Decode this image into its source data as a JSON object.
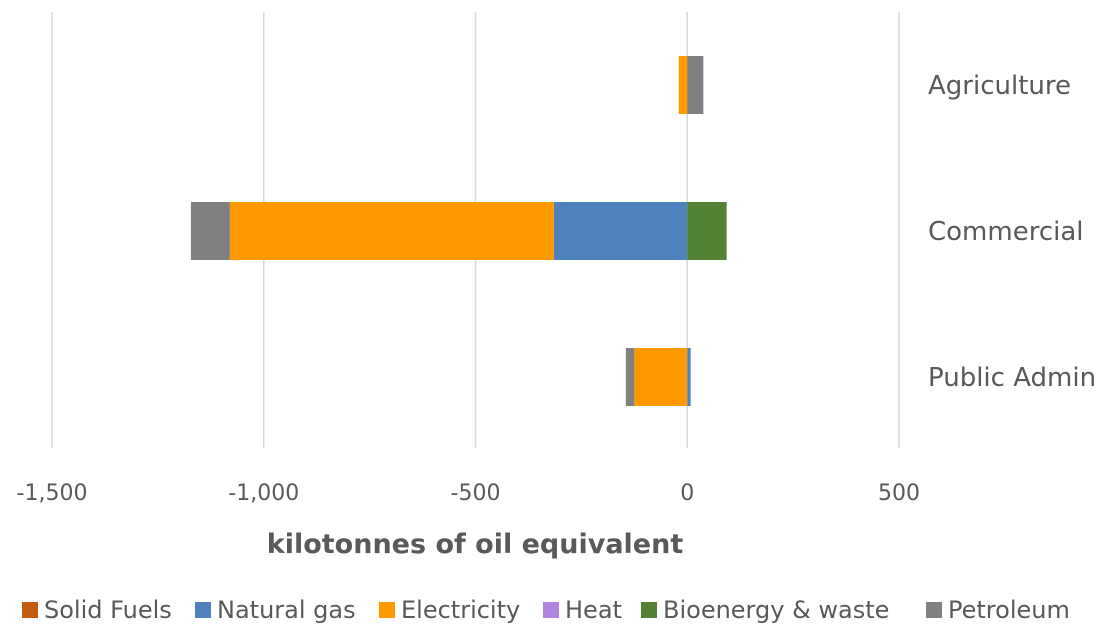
{
  "chart_data": {
    "type": "bar",
    "orientation": "horizontal",
    "stacked": true,
    "categories": [
      "Agriculture",
      "Commercial",
      "Public Admin"
    ],
    "xlabel": "kilotonnes of oil equivalent",
    "xlim": [
      -1500,
      500
    ],
    "xticks": [
      -1500,
      -1000,
      -500,
      0,
      500
    ],
    "xtick_labels": [
      "-1,500",
      "-1,000",
      "-500",
      "0",
      "500"
    ],
    "grid": true,
    "legend_position": "bottom",
    "series": [
      {
        "name": "Solid Fuels",
        "color": "#c55a11",
        "values": [
          0,
          0,
          0
        ]
      },
      {
        "name": "Natural gas",
        "color": "#4f81bd",
        "values": [
          0,
          -315,
          8
        ]
      },
      {
        "name": "Electricity",
        "color": "#ff9900",
        "values": [
          -20,
          -765,
          -125
        ]
      },
      {
        "name": "Heat",
        "color": "#b084e0",
        "values": [
          0,
          0,
          0
        ]
      },
      {
        "name": "Bioenergy & waste",
        "color": "#548235",
        "values": [
          0,
          93,
          0
        ]
      },
      {
        "name": "Petroleum",
        "color": "#808080",
        "values": [
          38,
          -92,
          -20
        ]
      }
    ]
  }
}
